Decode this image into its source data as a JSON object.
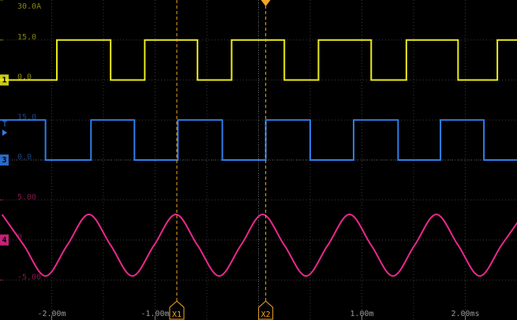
{
  "chart_data": {
    "type": "line",
    "xlim": [
      -2.5,
      2.5
    ],
    "xticks": [
      {
        "value": -2,
        "label": "-2.00m"
      },
      {
        "value": -1,
        "label": "-1.00m"
      },
      {
        "value": 1,
        "label": "1.00m"
      },
      {
        "value": 2,
        "label": "2.00ms"
      }
    ],
    "trigger_label": "T",
    "trigger_x": 0.07,
    "cursors": [
      {
        "label": "X1",
        "x": -0.79
      },
      {
        "label": "X2",
        "x": 0.07
      }
    ],
    "series": [
      {
        "name": "1",
        "color": "#ecec1c",
        "ylim": [
          -90,
          30
        ],
        "yticks": [
          {
            "value": 30,
            "label": "30.0A"
          },
          {
            "value": 15,
            "label": "15.0"
          },
          {
            "value": 0,
            "label": "0.0"
          }
        ],
        "x": [
          -2.5,
          -1.95,
          -1.95,
          -1.43,
          -1.43,
          -1.1,
          -1.1,
          -0.59,
          -0.59,
          -0.26,
          -0.26,
          0.25,
          0.25,
          0.58,
          0.58,
          1.09,
          1.09,
          1.43,
          1.43,
          1.93,
          1.93,
          2.31,
          2.31,
          2.5
        ],
        "values": [
          0,
          0,
          15,
          15,
          0,
          0,
          15,
          15,
          0,
          0,
          15,
          15,
          0,
          0,
          15,
          15,
          0,
          0,
          15,
          15,
          0,
          0,
          15,
          15
        ]
      },
      {
        "name": "3",
        "color": "#2f7de8",
        "ylim": [
          -60,
          60
        ],
        "trigger_level": 13.5,
        "yticks": [
          {
            "value": 15,
            "label": "15.0"
          },
          {
            "value": 0,
            "label": "0.0"
          }
        ],
        "x": [
          -2.5,
          -2.06,
          -2.06,
          -1.62,
          -1.62,
          -1.2,
          -1.2,
          -0.78,
          -0.78,
          -0.35,
          -0.35,
          0.07,
          0.07,
          0.5,
          0.5,
          0.92,
          0.92,
          1.35,
          1.35,
          1.76,
          1.76,
          2.18,
          2.18,
          2.5
        ],
        "values": [
          15,
          15,
          0,
          0,
          15,
          15,
          0,
          0,
          15,
          15,
          0,
          0,
          15,
          15,
          0,
          0,
          15,
          15,
          0,
          0,
          15,
          15,
          0,
          0
        ]
      },
      {
        "name": "4",
        "color": "#e8288c",
        "ylim": [
          -10,
          30
        ],
        "yticks": [
          {
            "value": 5,
            "label": "5.00"
          },
          0,
          {
            "value": -5,
            "label": "-5.00"
          }
        ],
        "x": [
          -2.48,
          -2.27,
          -2.06,
          -1.85,
          -1.64,
          -1.43,
          -1.22,
          -1.01,
          -0.8,
          -0.59,
          -0.38,
          -0.17,
          0.04,
          0.25,
          0.46,
          0.67,
          0.88,
          1.09,
          1.3,
          1.51,
          1.72,
          1.93,
          2.14,
          2.35,
          2.56
        ],
        "values": [
          3.2,
          -0.65,
          -4.5,
          -0.65,
          3.2,
          -0.65,
          -4.5,
          -0.65,
          3.2,
          -0.65,
          -4.5,
          -0.65,
          3.2,
          -0.65,
          -4.5,
          -0.65,
          3.2,
          -0.65,
          -4.5,
          -0.65,
          3.2,
          -0.65,
          -4.5,
          -0.65,
          3.2
        ]
      }
    ]
  }
}
